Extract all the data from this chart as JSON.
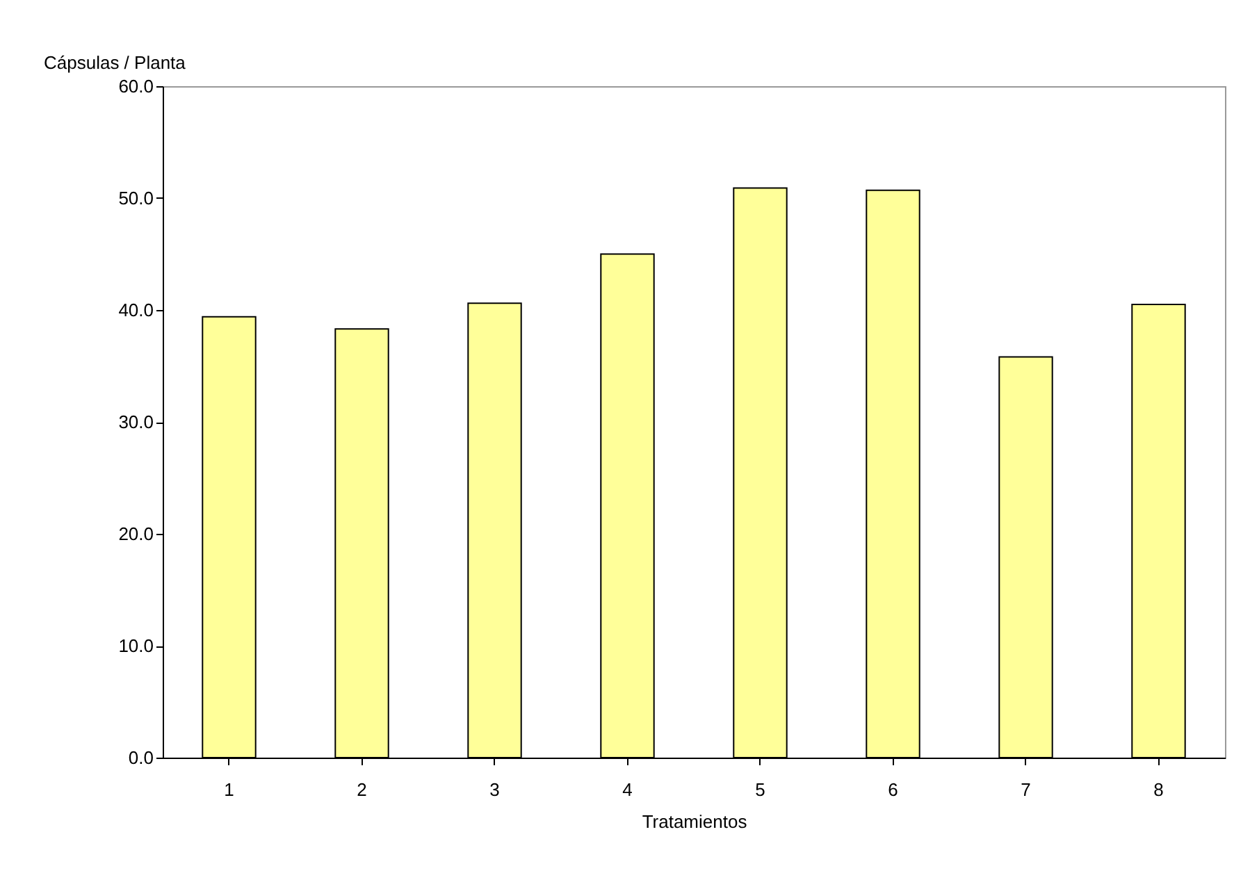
{
  "chart_data": {
    "type": "bar",
    "xlabel": "Tratamientos",
    "ylabel": "Cápsulas / Planta",
    "categories": [
      "1",
      "2",
      "3",
      "4",
      "5",
      "6",
      "7",
      "8"
    ],
    "values": [
      39.4,
      38.3,
      40.6,
      45.0,
      50.9,
      50.7,
      35.8,
      40.5
    ],
    "color": "#ffff99",
    "ylim": [
      0,
      60
    ],
    "yticks": [
      {
        "value": 0,
        "label": "0.0"
      },
      {
        "value": 10,
        "label": "10.0"
      },
      {
        "value": 20,
        "label": "20.0"
      },
      {
        "value": 30,
        "label": "30.0"
      },
      {
        "value": 40,
        "label": "40.0"
      },
      {
        "value": 50,
        "label": "50.0"
      },
      {
        "value": 60,
        "label": "60.0"
      }
    ],
    "grid": false
  }
}
